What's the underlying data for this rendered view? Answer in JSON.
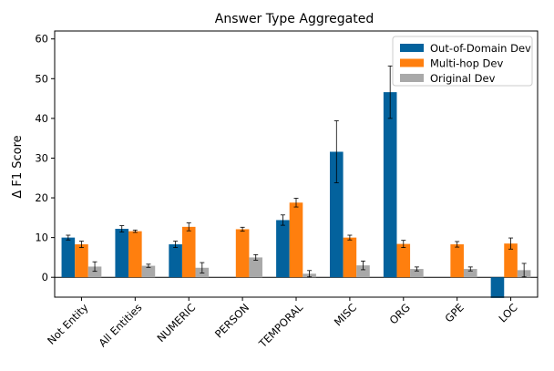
{
  "chart_data": {
    "type": "bar",
    "title": "Answer Type Aggregated",
    "xlabel": "",
    "ylabel": "Δ F1 Score",
    "ylim": [
      -5,
      62
    ],
    "yticks": [
      0,
      10,
      20,
      30,
      40,
      50,
      60
    ],
    "grid": false,
    "legend_position": "top-right",
    "categories": [
      "Not Entity",
      "All Entities",
      "NUMERIC",
      "PERSON",
      "TEMPORAL",
      "MISC",
      "ORG",
      "GPE",
      "LOC"
    ],
    "series": [
      {
        "name": "Out-of-Domain Dev",
        "color": "#03629d",
        "values": [
          10.0,
          12.2,
          8.3,
          null,
          14.4,
          31.6,
          46.6,
          null,
          -5.2
        ],
        "errors": [
          0.6,
          0.8,
          0.8,
          null,
          1.3,
          7.8,
          6.6,
          null,
          0
        ]
      },
      {
        "name": "Multi-hop Dev",
        "color": "#ff7f0e",
        "values": [
          8.3,
          11.6,
          12.7,
          12.1,
          18.8,
          10.0,
          8.4,
          8.3,
          8.5
        ],
        "errors": [
          0.8,
          0.3,
          1.0,
          0.5,
          1.1,
          0.6,
          0.9,
          0.7,
          1.4
        ]
      },
      {
        "name": "Original Dev",
        "color": "#a9a9a9",
        "values": [
          2.7,
          2.9,
          2.4,
          5.0,
          0.9,
          3.0,
          2.1,
          2.1,
          1.8
        ],
        "errors": [
          1.2,
          0.4,
          1.3,
          0.7,
          0.8,
          1.1,
          0.5,
          0.5,
          1.7
        ]
      }
    ]
  }
}
